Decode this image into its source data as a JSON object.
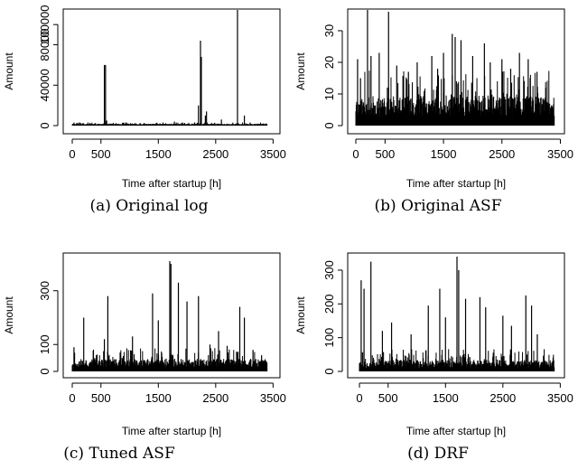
{
  "panels": [
    {
      "id": "a",
      "caption": "(a) Original log",
      "chart_data": {
        "type": "bar",
        "xlabel": "Time after startup [h]",
        "ylabel": "Amount",
        "xlim": [
          0,
          3400
        ],
        "ylim": [
          0,
          110000
        ],
        "xticks": [
          0,
          500,
          1500,
          2500,
          3500
        ],
        "xtick_labels": [
          "0",
          "500",
          "1500",
          "2500",
          "3500"
        ],
        "yticks": [
          0,
          40000,
          80000,
          100000
        ],
        "ytick_labels": [
          "0",
          "40000",
          "80000",
          "100000"
        ],
        "grid": false,
        "legend": "none",
        "baseline": 800,
        "baseline_jitter": 1500,
        "seed": 11,
        "peaks": [
          [
            30,
            3000
          ],
          [
            200,
            2000
          ],
          [
            560,
            60000
          ],
          [
            580,
            60000
          ],
          [
            600,
            5000
          ],
          [
            1100,
            2500
          ],
          [
            1780,
            4000
          ],
          [
            2200,
            20000
          ],
          [
            2235,
            84000
          ],
          [
            2250,
            68000
          ],
          [
            2320,
            10000
          ],
          [
            2340,
            14000
          ],
          [
            2600,
            6000
          ],
          [
            2880,
            118000
          ],
          [
            3000,
            10000
          ],
          [
            3100,
            3000
          ]
        ]
      }
    },
    {
      "id": "b",
      "caption": "(b) Original ASF",
      "chart_data": {
        "type": "bar",
        "xlabel": "Time after startup [h]",
        "ylabel": "Amount",
        "xlim": [
          0,
          3400
        ],
        "ylim": [
          0,
          38
        ],
        "xticks": [
          0,
          500,
          1500,
          2500,
          3500
        ],
        "xtick_labels": [
          "0",
          "500",
          "1500",
          "2500",
          "3500"
        ],
        "yticks": [
          0,
          10,
          20,
          30
        ],
        "ytick_labels": [
          "0",
          "10",
          "20",
          "30"
        ],
        "grid": false,
        "legend": "none",
        "baseline": 3,
        "baseline_jitter": 9,
        "seed": 23,
        "peaks": [
          [
            30,
            21
          ],
          [
            80,
            15
          ],
          [
            200,
            38
          ],
          [
            260,
            22
          ],
          [
            400,
            23
          ],
          [
            560,
            36
          ],
          [
            700,
            19
          ],
          [
            900,
            17
          ],
          [
            1050,
            20
          ],
          [
            1300,
            22
          ],
          [
            1400,
            18
          ],
          [
            1500,
            23
          ],
          [
            1650,
            29
          ],
          [
            1700,
            28
          ],
          [
            1800,
            27
          ],
          [
            2000,
            22
          ],
          [
            2200,
            26
          ],
          [
            2300,
            20
          ],
          [
            2500,
            21
          ],
          [
            2650,
            18
          ],
          [
            2800,
            23
          ],
          [
            2950,
            21
          ],
          [
            3100,
            17
          ],
          [
            3250,
            12
          ]
        ]
      }
    },
    {
      "id": "c",
      "caption": "(c) Tuned ASF",
      "chart_data": {
        "type": "bar",
        "xlabel": "Time after startup [h]",
        "ylabel": "Amount",
        "xlim": [
          0,
          3400
        ],
        "ylim": [
          0,
          420
        ],
        "xticks": [
          0,
          500,
          1500,
          2500,
          3500
        ],
        "xtick_labels": [
          "0",
          "500",
          "1500",
          "2500",
          "3500"
        ],
        "yticks": [
          0,
          100,
          300
        ],
        "ytick_labels": [
          "0",
          "100",
          "300"
        ],
        "grid": false,
        "legend": "none",
        "baseline": 15,
        "baseline_jitter": 45,
        "seed": 37,
        "peaks": [
          [
            30,
            90
          ],
          [
            200,
            200
          ],
          [
            420,
            60
          ],
          [
            560,
            120
          ],
          [
            620,
            280
          ],
          [
            1050,
            130
          ],
          [
            1400,
            290
          ],
          [
            1500,
            190
          ],
          [
            1700,
            410
          ],
          [
            1720,
            400
          ],
          [
            1850,
            330
          ],
          [
            2000,
            260
          ],
          [
            2200,
            280
          ],
          [
            2400,
            100
          ],
          [
            2550,
            150
          ],
          [
            2700,
            95
          ],
          [
            2920,
            240
          ],
          [
            3000,
            200
          ],
          [
            3150,
            80
          ],
          [
            3300,
            60
          ]
        ]
      }
    },
    {
      "id": "d",
      "caption": "(d) DRF",
      "chart_data": {
        "type": "bar",
        "xlabel": "Time after startup [h]",
        "ylabel": "Amount",
        "xlim": [
          0,
          3400
        ],
        "ylim": [
          0,
          340
        ],
        "xticks": [
          0,
          500,
          1500,
          2500,
          3500
        ],
        "xtick_labels": [
          "0",
          "500",
          "1500",
          "2500",
          "3500"
        ],
        "yticks": [
          0,
          100,
          200,
          300
        ],
        "ytick_labels": [
          "0",
          "100",
          "200",
          "300"
        ],
        "grid": false,
        "legend": "none",
        "baseline": 10,
        "baseline_jitter": 35,
        "seed": 53,
        "peaks": [
          [
            30,
            270
          ],
          [
            80,
            245
          ],
          [
            200,
            325
          ],
          [
            400,
            120
          ],
          [
            560,
            145
          ],
          [
            900,
            110
          ],
          [
            1200,
            195
          ],
          [
            1400,
            245
          ],
          [
            1500,
            160
          ],
          [
            1700,
            340
          ],
          [
            1730,
            300
          ],
          [
            1850,
            215
          ],
          [
            2100,
            220
          ],
          [
            2200,
            190
          ],
          [
            2500,
            165
          ],
          [
            2650,
            135
          ],
          [
            2900,
            225
          ],
          [
            3000,
            195
          ],
          [
            3100,
            110
          ],
          [
            3300,
            20
          ]
        ]
      }
    }
  ]
}
